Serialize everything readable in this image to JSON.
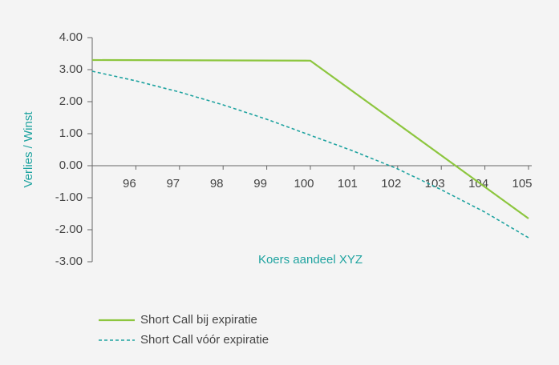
{
  "chart_data": {
    "type": "line",
    "x_label": "Koers aandeel XYZ",
    "y_label": "Verlies / Winst",
    "xlim": [
      95,
      105
    ],
    "xticks": [
      96,
      97,
      98,
      99,
      100,
      101,
      102,
      103,
      104,
      105
    ],
    "ylim": [
      -3,
      4
    ],
    "yticks": [
      {
        "value": 4,
        "label": "4.00"
      },
      {
        "value": 3,
        "label": "3.00"
      },
      {
        "value": 2,
        "label": "2.00"
      },
      {
        "value": 1,
        "label": "1.00"
      },
      {
        "value": 0,
        "label": "0.00"
      },
      {
        "value": -1,
        "label": "-1.00"
      },
      {
        "value": -2,
        "label": "-2.00"
      },
      {
        "value": -3,
        "label": "-3.00"
      }
    ],
    "series": [
      {
        "name": "Short Call bij expiratie",
        "color": "#8dc63f",
        "dash": false,
        "x": [
          95,
          100,
          105
        ],
        "values": [
          3.3,
          3.28,
          -1.65
        ]
      },
      {
        "name": "Short Call vóór expiratie",
        "color": "#1fa3a0",
        "dash": true,
        "x": [
          95,
          96,
          97,
          98,
          99,
          100,
          101,
          102,
          103,
          104,
          105
        ],
        "values": [
          2.95,
          2.65,
          2.3,
          1.9,
          1.45,
          0.95,
          0.45,
          -0.1,
          -0.75,
          -1.45,
          -2.25
        ]
      }
    ]
  }
}
